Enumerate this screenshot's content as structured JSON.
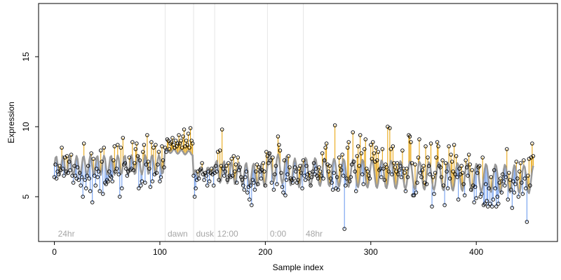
{
  "chart_data": {
    "type": "scatter",
    "xlabel": "Sample index",
    "ylabel": "Expression",
    "xlim": [
      -15,
      477
    ],
    "ylim": [
      1.8,
      18.8
    ],
    "x_ticks": [
      0,
      100,
      200,
      300,
      400
    ],
    "y_ticks": [
      5,
      10,
      15
    ],
    "grid": false,
    "colors": {
      "fitted": "#999999",
      "above": "#e69f00",
      "below": "#6495ed",
      "point_stroke": "#000000",
      "divider": "#e6e6e6"
    },
    "dividers": [
      105,
      132,
      152,
      202,
      236
    ],
    "annotations": [
      {
        "x": 2,
        "label": "24hr"
      },
      {
        "x": 106,
        "label": "dawn"
      },
      {
        "x": 133,
        "label": "dusk"
      },
      {
        "x": 153,
        "label": "12:00"
      },
      {
        "x": 203,
        "label": "0:00"
      },
      {
        "x": 237,
        "label": "48hr"
      }
    ],
    "fitted_segments": [
      {
        "type": "wave",
        "x0": 0,
        "x1": 105,
        "period": 6.5,
        "base": [
          7.2,
          7.3
        ],
        "amp": 0.7
      },
      {
        "type": "flat",
        "x0": 105,
        "x1": 132,
        "base": [
          8.3,
          8.1
        ],
        "amp": 0.15
      },
      {
        "type": "wave",
        "x0": 132,
        "x1": 152,
        "period": 6,
        "base": [
          6.6,
          6.9
        ],
        "amp": 0.3
      },
      {
        "type": "wave",
        "x0": 152,
        "x1": 202,
        "period": 7,
        "base": [
          6.8,
          6.5
        ],
        "amp": 0.8
      },
      {
        "type": "wave",
        "x0": 202,
        "x1": 236,
        "period": 8,
        "base": [
          7.2,
          6.6
        ],
        "amp": 1.0
      },
      {
        "type": "wave",
        "x0": 236,
        "x1": 463,
        "period": 9,
        "base": [
          6.8,
          6.2
        ],
        "amp": 1.0
      }
    ],
    "observed": [
      6.4,
      7.3,
      6.3,
      6.8,
      6.6,
      7.2,
      6.9,
      8.5,
      7.0,
      6.5,
      7.8,
      6.8,
      7.9,
      6.7,
      7.5,
      6.9,
      8.0,
      6.5,
      6.0,
      7.2,
      6.5,
      6.3,
      7.1,
      6.2,
      6.7,
      5.8,
      6.4,
      5.0,
      8.8,
      6.2,
      5.6,
      6.5,
      7.2,
      6.3,
      5.4,
      8.1,
      4.6,
      7.7,
      6.5,
      5.8,
      7.0,
      6.4,
      6.8,
      5.4,
      8.3,
      7.5,
      5.2,
      8.5,
      6.0,
      5.9,
      6.2,
      6.1,
      6.8,
      6.5,
      6.4,
      6.1,
      7.6,
      8.6,
      6.8,
      7.0,
      8.7,
      6.6,
      5.0,
      8.5,
      5.6,
      9.2,
      7.3,
      7.4,
      7.0,
      6.5,
      6.8,
      7.8,
      6.9,
      7.0,
      8.9,
      6.9,
      7.4,
      8.4,
      8.8,
      7.9,
      5.6,
      7.6,
      5.8,
      6.1,
      8.2,
      8.7,
      6.0,
      7.3,
      9.4,
      7.5,
      7.0,
      5.7,
      8.9,
      6.1,
      8.5,
      6.6,
      8.7,
      6.7,
      7.3,
      8.2,
      6.1,
      6.4,
      8.6,
      7.6,
      7.1,
      8.5,
      8.2,
      9.1,
      9.0,
      8.4,
      8.8,
      8.9,
      9.2,
      8.7,
      8.5,
      9.0,
      8.6,
      8.8,
      9.4,
      8.8,
      9.0,
      8.5,
      9.3,
      9.8,
      8.6,
      9.0,
      8.7,
      9.5,
      8.5,
      9.9,
      9.0,
      8.8,
      6.5,
      5.0,
      5.6,
      6.2,
      6.8,
      6.3,
      6.9,
      7.0,
      7.4,
      6.6,
      6.2,
      6.7,
      6.5,
      5.8,
      6.8,
      6.1,
      6.7,
      7.0,
      6.6,
      5.8,
      6.7,
      7.2,
      6.8,
      8.2,
      6.2,
      8.3,
      7.2,
      9.8,
      7.0,
      6.5,
      6.8,
      7.2,
      6.2,
      7.4,
      6.5,
      6.4,
      7.7,
      6.5,
      7.9,
      6.8,
      7.3,
      6.0,
      7.8,
      6.9,
      7.1,
      6.4,
      6.2,
      5.8,
      5.5,
      6.4,
      6.8,
      5.3,
      5.7,
      4.8,
      5.8,
      4.4,
      6.2,
      6.0,
      5.5,
      6.8,
      7.3,
      5.9,
      7.1,
      6.8,
      6.3,
      6.9,
      7.4,
      6.8,
      5.8,
      8.2,
      7.9,
      7.4,
      8.1,
      7.6,
      6.0,
      7.8,
      5.5,
      6.6,
      7.2,
      5.9,
      9.3,
      8.7,
      8.3,
      6.7,
      5.7,
      5.3,
      7.6,
      5.1,
      6.2,
      6.6,
      7.9,
      7.1,
      6.3,
      6.2,
      6.0,
      6.3,
      7.1,
      6.8,
      6.0,
      6.2,
      7.0,
      7.2,
      6.7,
      5.6,
      7.6,
      6.5,
      6.2,
      7.2,
      6.6,
      6.3,
      6.7,
      5.8,
      6.4,
      6.8,
      7.4,
      6.6,
      7.0,
      6.5,
      6.3,
      7.1,
      6.8,
      6.5,
      8.1,
      6.3,
      7.6,
      8.5,
      8.8,
      7.3,
      6.8,
      7.2,
      6.3,
      6.0,
      5.5,
      6.7,
      10.1,
      5.6,
      6.4,
      5.5,
      7.8,
      7.2,
      6.9,
      8.0,
      6.5,
      2.7,
      5.8,
      6.3,
      8.5,
      8.9,
      6.1,
      6.4,
      7.3,
      9.6,
      7.5,
      6.8,
      5.4,
      7.9,
      8.6,
      7.2,
      9.4,
      8.1,
      6.6,
      5.9,
      8.4,
      9.1,
      7.0,
      6.8,
      6.5,
      6.3,
      8.7,
      7.7,
      8.9,
      8.1,
      7.5,
      8.5,
      7.6,
      8.2,
      6.9,
      7.0,
      6.4,
      8.4,
      7.0,
      6.2,
      7.3,
      7.1,
      10.0,
      6.8,
      9.9,
      8.4,
      6.6,
      8.6,
      7.4,
      7.1,
      6.8,
      7.4,
      6.6,
      6.9,
      7.2,
      6.4,
      8.3,
      7.0,
      6.7,
      5.4,
      7.0,
      6.4,
      9.4,
      9.3,
      8.9,
      7.4,
      5.1,
      5.1,
      7.3,
      5.3,
      6.0,
      7.8,
      9.1,
      6.7,
      6.4,
      6.9,
      7.2,
      6.0,
      8.6,
      5.9,
      7.8,
      7.2,
      6.6,
      8.8,
      4.3,
      6.4,
      5.2,
      6.7,
      7.8,
      8.9,
      8.6,
      7.2,
      7.1,
      6.4,
      7.6,
      5.8,
      4.4,
      7.4,
      6.8,
      5.6,
      8.6,
      6.3,
      8.0,
      7.5,
      6.8,
      8.7,
      6.6,
      7.9,
      6.4,
      4.8,
      7.0,
      6.6,
      7.2,
      6.7,
      5.9,
      5.1,
      7.6,
      7.1,
      6.5,
      8.0,
      7.3,
      5.5,
      6.9,
      5.8,
      4.6,
      5.7,
      4.9,
      6.7,
      7.1,
      7.2,
      5.0,
      5.2,
      7.8,
      4.4,
      4.5,
      5.9,
      4.7,
      4.3,
      5.6,
      4.5,
      6.4,
      4.3,
      4.8,
      6.9,
      5.6,
      4.3,
      5.0,
      4.5,
      6.0,
      6.3,
      5.3,
      6.6,
      6.1,
      5.8,
      6.4,
      8.4,
      4.8,
      6.7,
      6.2,
      5.5,
      4.2,
      6.1,
      5.3,
      5.9,
      7.5,
      6.3,
      5.0,
      6.8,
      7.4,
      6.0,
      5.2,
      7.6,
      6.3,
      5.6,
      3.2,
      6.5,
      7.7,
      5.8,
      7.8,
      8.8,
      7.9
    ]
  }
}
